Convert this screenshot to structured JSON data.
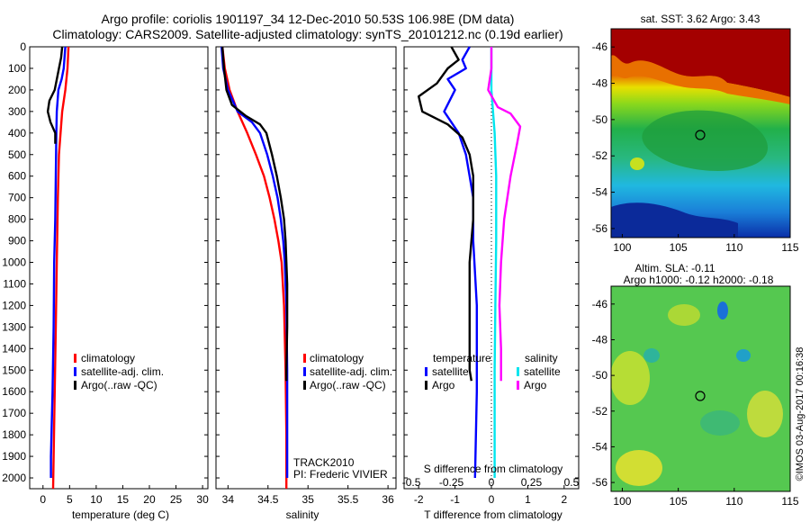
{
  "header": {
    "title_line1": "Argo profile: coriolis 1901197_34 12-Dec-2010 50.53S 106.98E (DM data)",
    "title_line2": "Climatology: CARS2009. Satellite-adjusted climatology: synTS_20101212.nc (0.19d earlier)"
  },
  "colors": {
    "climatology": "#ff0000",
    "satellite": "#0000ff",
    "argo": "#000000",
    "sal_satellite": "#00e5ee",
    "sal_argo": "#ff00ff"
  },
  "chart_data": [
    {
      "type": "line",
      "name": "temperature-profile",
      "xlabel": "temperature (deg C)",
      "ylabel": "",
      "xlim": [
        -2.5,
        31
      ],
      "ylim": [
        2050,
        0
      ],
      "xticks": [
        0,
        5,
        10,
        15,
        20,
        25,
        30
      ],
      "yticks": [
        0,
        100,
        200,
        300,
        400,
        500,
        600,
        700,
        800,
        900,
        1000,
        1100,
        1200,
        1300,
        1400,
        1500,
        1600,
        1700,
        1800,
        1900,
        2000
      ],
      "legend": {
        "placement": "lower-middle",
        "entries": [
          "climatology",
          "satellite-adj. clim.",
          "Argo(..raw -QC)"
        ]
      },
      "series": [
        {
          "name": "climatology",
          "color_key": "climatology",
          "points": [
            [
              4.8,
              0
            ],
            [
              4.6,
              100
            ],
            [
              4.2,
              200
            ],
            [
              3.6,
              300
            ],
            [
              3.3,
              400
            ],
            [
              3.0,
              500
            ],
            [
              2.8,
              700
            ],
            [
              2.6,
              1000
            ],
            [
              2.4,
              1300
            ],
            [
              2.2,
              1600
            ],
            [
              2.0,
              1900
            ],
            [
              1.9,
              2050
            ]
          ]
        },
        {
          "name": "satellite-adj. clim.",
          "color_key": "satellite",
          "points": [
            [
              4.2,
              0
            ],
            [
              3.9,
              100
            ],
            [
              3.5,
              150
            ],
            [
              2.9,
              200
            ],
            [
              2.6,
              300
            ],
            [
              2.5,
              400
            ],
            [
              2.4,
              600
            ],
            [
              2.3,
              800
            ],
            [
              2.1,
              1000
            ],
            [
              2.0,
              1300
            ],
            [
              1.8,
              1600
            ],
            [
              1.5,
              1900
            ],
            [
              1.5,
              2000
            ]
          ]
        },
        {
          "name": "Argo(..raw -QC)",
          "color_key": "argo",
          "points": [
            [
              3.6,
              0
            ],
            [
              3.4,
              50
            ],
            [
              3.0,
              100
            ],
            [
              2.2,
              200
            ],
            [
              1.2,
              250
            ],
            [
              0.9,
              300
            ],
            [
              1.4,
              350
            ],
            [
              2.3,
              400
            ],
            [
              2.3,
              450
            ]
          ]
        }
      ]
    },
    {
      "type": "line",
      "name": "salinity-profile",
      "xlabel": "salinity",
      "ylabel": "",
      "xlim": [
        33.85,
        36.1
      ],
      "ylim": [
        2050,
        0
      ],
      "xticks": [
        34,
        34.5,
        35,
        35.5,
        36
      ],
      "legend": {
        "placement": "lower-middle",
        "entries": [
          "climatology",
          "satellite-adj. clim.",
          "Argo(..raw -QC)"
        ]
      },
      "annotation": [
        "TRACK2010",
        "PI: Frederic VIVIER"
      ],
      "series": [
        {
          "name": "climatology",
          "color_key": "climatology",
          "points": [
            [
              33.93,
              0
            ],
            [
              33.96,
              100
            ],
            [
              34.02,
              200
            ],
            [
              34.12,
              300
            ],
            [
              34.24,
              400
            ],
            [
              34.35,
              500
            ],
            [
              34.45,
              600
            ],
            [
              34.52,
              700
            ],
            [
              34.58,
              800
            ],
            [
              34.63,
              900
            ],
            [
              34.67,
              1000
            ],
            [
              34.7,
              1200
            ],
            [
              34.72,
              1500
            ],
            [
              34.73,
              1800
            ],
            [
              34.73,
              2050
            ]
          ]
        },
        {
          "name": "satellite-adj. clim.",
          "color_key": "satellite",
          "points": [
            [
              33.92,
              0
            ],
            [
              33.94,
              100
            ],
            [
              34.0,
              200
            ],
            [
              34.12,
              300
            ],
            [
              34.3,
              350
            ],
            [
              34.4,
              400
            ],
            [
              34.49,
              500
            ],
            [
              34.56,
              600
            ],
            [
              34.62,
              700
            ],
            [
              34.66,
              800
            ],
            [
              34.69,
              900
            ],
            [
              34.71,
              1000
            ],
            [
              34.73,
              1200
            ],
            [
              34.74,
              1500
            ],
            [
              34.74,
              1800
            ],
            [
              34.74,
              2000
            ]
          ]
        },
        {
          "name": "Argo(..raw -QC)",
          "color_key": "argo",
          "points": [
            [
              33.93,
              0
            ],
            [
              33.95,
              100
            ],
            [
              33.98,
              200
            ],
            [
              34.05,
              270
            ],
            [
              34.22,
              320
            ],
            [
              34.4,
              360
            ],
            [
              34.48,
              400
            ],
            [
              34.55,
              500
            ],
            [
              34.61,
              600
            ],
            [
              34.66,
              700
            ],
            [
              34.7,
              800
            ],
            [
              34.72,
              900
            ],
            [
              34.73,
              1000
            ],
            [
              34.74,
              1100
            ],
            [
              34.74,
              1300
            ],
            [
              34.73,
              1500
            ],
            [
              34.73,
              1550
            ]
          ]
        }
      ]
    },
    {
      "type": "line",
      "name": "difference-profile",
      "xlabel": "T difference from climatology",
      "xlabel_top": "S difference from climatology",
      "xlim": [
        -2.4,
        2.4
      ],
      "ylim": [
        2050,
        0
      ],
      "xticks": [
        -2,
        -1,
        0,
        1,
        2
      ],
      "xticks_top": [
        -0.5,
        -0.25,
        0,
        0.25,
        0.5
      ],
      "xticks_top_labels": [
        "-0.5",
        "-0.25",
        "0",
        "0.25",
        "0.5"
      ],
      "legend": {
        "placement": "lower-middle",
        "temperature_title": "temperature",
        "salinity_title": "salinity",
        "entries": [
          "satellite",
          "Argo",
          "satellite",
          "Argo"
        ]
      },
      "series": [
        {
          "name": "temperature satellite",
          "color_key": "satellite",
          "points": [
            [
              -0.6,
              0
            ],
            [
              -0.8,
              60
            ],
            [
              -0.7,
              100
            ],
            [
              -1.2,
              150
            ],
            [
              -1.0,
              200
            ],
            [
              -1.3,
              300
            ],
            [
              -0.9,
              400
            ],
            [
              -0.7,
              500
            ],
            [
              -0.6,
              600
            ],
            [
              -0.5,
              700
            ],
            [
              -0.5,
              900
            ],
            [
              -0.4,
              1200
            ],
            [
              -0.4,
              1600
            ],
            [
              -0.45,
              2000
            ]
          ]
        },
        {
          "name": "temperature Argo",
          "color_key": "argo",
          "points": [
            [
              -1.1,
              0
            ],
            [
              -0.9,
              60
            ],
            [
              -1.2,
              100
            ],
            [
              -1.5,
              170
            ],
            [
              -2.0,
              230
            ],
            [
              -1.9,
              300
            ],
            [
              -1.2,
              360
            ],
            [
              -0.8,
              420
            ],
            [
              -0.6,
              500
            ],
            [
              -0.5,
              600
            ],
            [
              -0.5,
              800
            ],
            [
              -0.6,
              1000
            ],
            [
              -0.6,
              1300
            ],
            [
              -0.6,
              1500
            ],
            [
              -0.55,
              1550
            ]
          ]
        },
        {
          "name": "salinity satellite",
          "color_key": "sal_satellite",
          "points": [
            [
              0.0,
              0
            ],
            [
              0.0,
              200
            ],
            [
              0.02,
              400
            ],
            [
              0.03,
              600
            ],
            [
              0.03,
              900
            ],
            [
              0.025,
              1200
            ],
            [
              0.02,
              1500
            ],
            [
              0.02,
              1800
            ],
            [
              0.02,
              2000
            ]
          ]
        },
        {
          "name": "salinity Argo",
          "color_key": "sal_argo",
          "points": [
            [
              0.0,
              0
            ],
            [
              0.0,
              100
            ],
            [
              -0.02,
              200
            ],
            [
              0.04,
              280
            ],
            [
              0.12,
              310
            ],
            [
              0.18,
              370
            ],
            [
              0.16,
              450
            ],
            [
              0.12,
              600
            ],
            [
              0.08,
              800
            ],
            [
              0.06,
              1000
            ],
            [
              0.05,
              1200
            ],
            [
              0.06,
              1400
            ],
            [
              0.06,
              1550
            ]
          ]
        }
      ]
    },
    {
      "type": "heatmap",
      "name": "sst-map",
      "title": "sat. SST: 3.62 Argo: 3.43",
      "xlim": [
        99,
        115
      ],
      "ylim": [
        -56.5,
        -45
      ],
      "xticks": [
        100,
        105,
        110,
        115
      ],
      "yticks": [
        -46,
        -48,
        -50,
        -52,
        -54,
        -56
      ],
      "marker": [
        106.98,
        -50.53
      ]
    },
    {
      "type": "heatmap",
      "name": "sla-map",
      "title_line1": "Altim. SLA: -0.11",
      "title_line2": "Argo h1000: -0.12 h2000: -0.18",
      "xlim": [
        99,
        115
      ],
      "ylim": [
        -56.5,
        -45
      ],
      "xticks": [
        100,
        105,
        110,
        115
      ],
      "yticks": [
        -46,
        -48,
        -50,
        -52,
        -54,
        -56
      ],
      "marker": [
        106.98,
        -50.53
      ]
    }
  ],
  "side_label": "©IMOS 03-Aug-2017 00:16:38"
}
